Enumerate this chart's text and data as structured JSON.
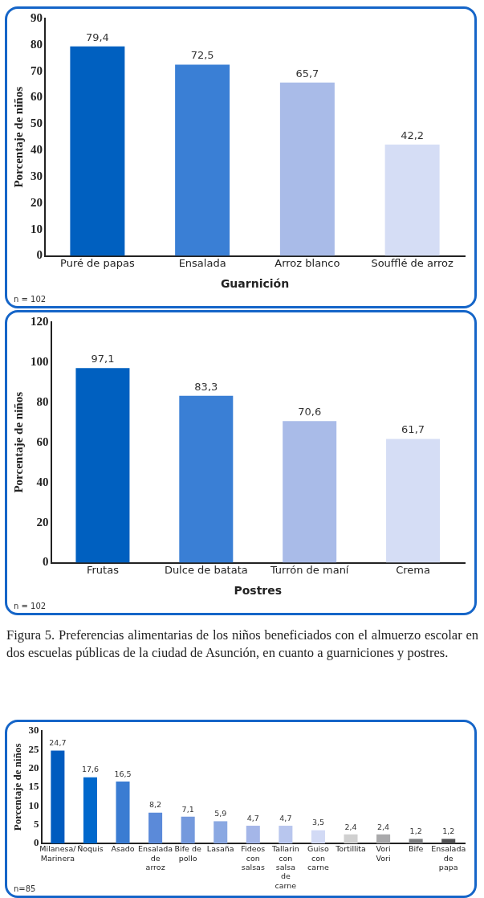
{
  "chart_data": [
    {
      "type": "bar",
      "xlabel": "Guarnición",
      "ylabel": "Porcentaje de niños",
      "categories": [
        "Puré de papas",
        "Ensalada",
        "Arroz blanco",
        "Soufflé de arroz"
      ],
      "values": [
        79.4,
        72.5,
        65.7,
        42.2
      ],
      "value_labels": [
        "79,4",
        "72,5",
        "65,7",
        "42,2"
      ],
      "colors": [
        "#0060c0",
        "#3a7fd5",
        "#a9bbe8",
        "#d5ddf5"
      ],
      "ylim": [
        0,
        90
      ],
      "yticks": [
        0,
        10,
        20,
        30,
        40,
        50,
        60,
        70,
        80,
        90
      ],
      "grid": false,
      "legend": false,
      "annotations": [
        "n = 102"
      ]
    },
    {
      "type": "bar",
      "xlabel": "Postres",
      "ylabel": "Porcentaje de niños",
      "categories": [
        "Frutas",
        "Dulce de batata",
        "Turrón de maní",
        "Crema"
      ],
      "values": [
        97.1,
        83.3,
        70.6,
        61.7
      ],
      "value_labels": [
        "97,1",
        "83,3",
        "70,6",
        "61,7"
      ],
      "colors": [
        "#0060c0",
        "#3a7fd5",
        "#a9bbe8",
        "#d5ddf5"
      ],
      "ylim": [
        0,
        120
      ],
      "yticks": [
        0,
        20,
        40,
        60,
        80,
        100,
        120
      ],
      "grid": false,
      "legend": false,
      "annotations": [
        "n = 102",
        "Figura 5. Preferencias alimentarias de los niños beneficiados con el almuerzo escolar en dos escuelas públicas de la ciudad de Asunción, en cuanto a guarniciones y postres."
      ]
    },
    {
      "type": "bar",
      "ylabel": "Porcentaje de niños",
      "categories": [
        "Milanesa/ Marinera",
        "Ñoquis",
        "Asado",
        "Ensalada de arroz",
        "Bife de pollo",
        "Lasaña",
        "Fideos con salsas",
        "Tallarin con salsa de carne",
        "Guiso con carne",
        "Tortillita",
        "Vori Vori",
        "Bife",
        "Ensalada de papa"
      ],
      "values": [
        24.7,
        17.6,
        16.5,
        8.2,
        7.1,
        5.9,
        4.7,
        4.7,
        3.5,
        2.4,
        2.4,
        1.2,
        1.2
      ],
      "value_labels": [
        "24,7",
        "17,6",
        "16,5",
        "8,2",
        "7,1",
        "5,9",
        "4,7",
        "4,7",
        "3,5",
        "2,4",
        "2,4",
        "1,2",
        "1,2"
      ],
      "colors": [
        "#005bbf",
        "#0068cc",
        "#3a7cd2",
        "#5b8ad9",
        "#7499dd",
        "#8aa8e2",
        "#a4b6e8",
        "#b8c6ee",
        "#d2daf5",
        "#d0d0d0",
        "#a9a9ab",
        "#7d7e80",
        "#505052"
      ],
      "ylim": [
        0,
        30
      ],
      "yticks": [
        0,
        5,
        10,
        15,
        20,
        25,
        30
      ],
      "grid": false,
      "legend": false,
      "annotations": [
        "n=85"
      ]
    }
  ]
}
